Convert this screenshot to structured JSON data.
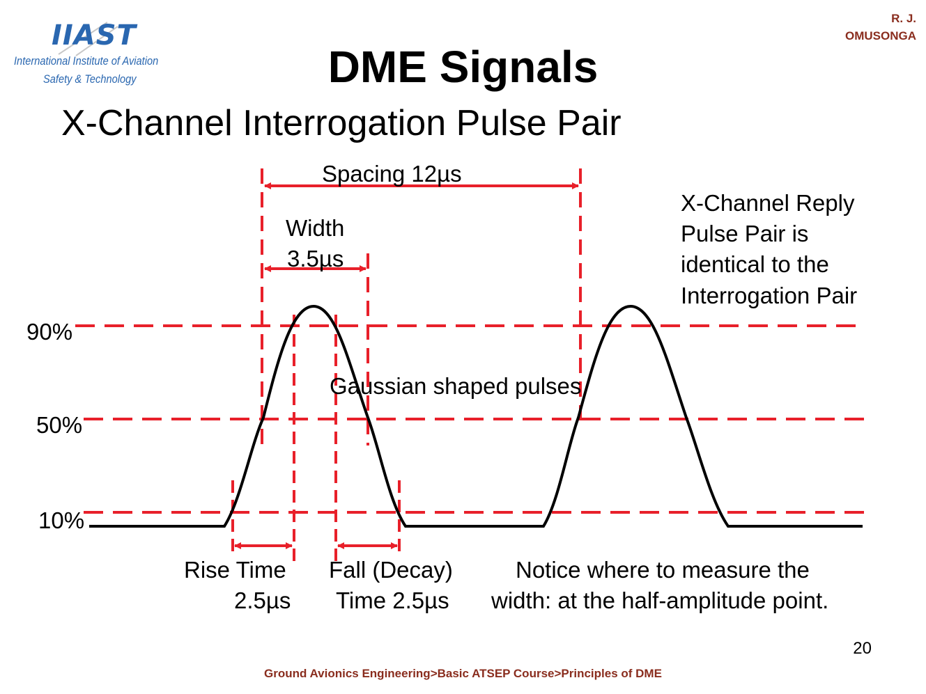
{
  "logo": {
    "mark": "IIAST",
    "line1": "International Institute of Aviation",
    "line2": "Safety & Technology"
  },
  "author": {
    "line1": "R. J.",
    "line2": "OMUSONGA"
  },
  "title": "DME Signals",
  "subtitle": "X-Channel Interrogation Pulse Pair",
  "diagram": {
    "levels": [
      "90%",
      "50%",
      "10%"
    ],
    "spacing_label": "Spacing 12µs",
    "width_label_1": "Width",
    "width_label_2": "3.5µs",
    "pulse_shape_label": "Gaussian shaped pulses",
    "reply_note": [
      "X-Channel Reply",
      "Pulse Pair is",
      "identical to the",
      "Interrogation Pair"
    ],
    "rise_time": [
      "Rise Time",
      "2.5µs"
    ],
    "fall_time": [
      "Fall (Decay)",
      "Time 2.5µs"
    ],
    "notice": [
      "Notice where to measure the",
      "width: at the half-amplitude point."
    ],
    "colors": {
      "guide": "#e8202a",
      "pulse": "#000000"
    }
  },
  "page_number": "20",
  "footer": "Ground Avionics Engineering>Basic ATSEP Course>Principles of DME"
}
